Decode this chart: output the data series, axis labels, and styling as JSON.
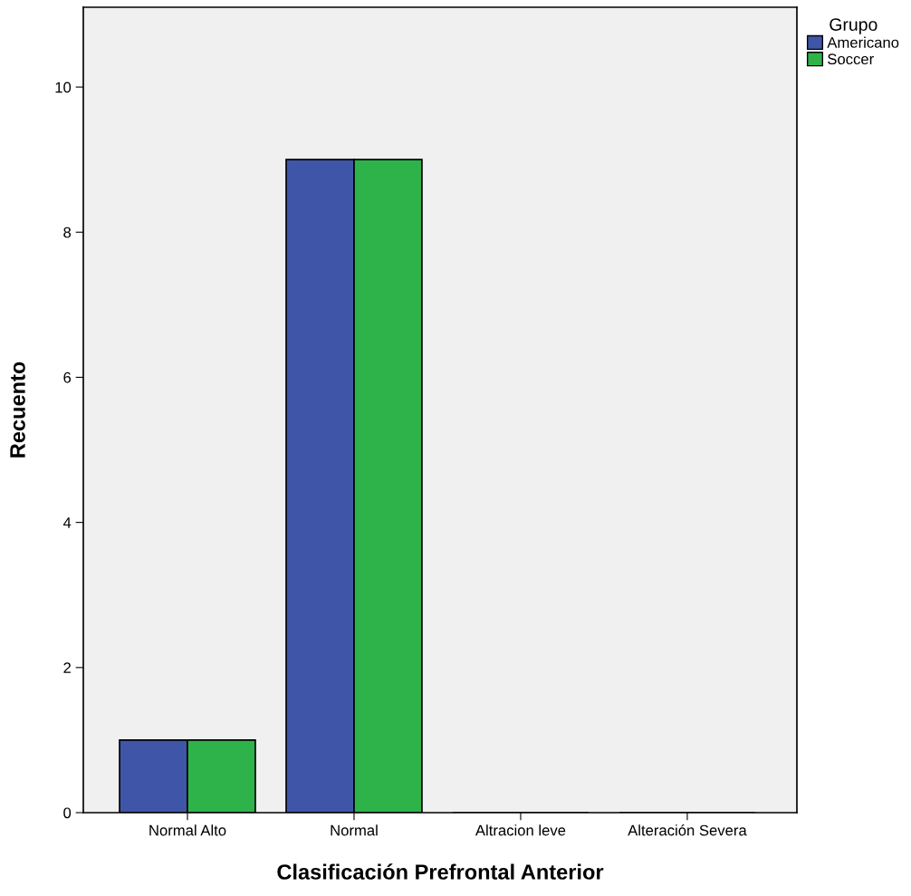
{
  "chart_data": {
    "type": "bar",
    "xlabel": "Clasificación Prefrontal Anterior",
    "ylabel": "Recuento",
    "legend_title": "Grupo",
    "categories": [
      "Normal Alto",
      "Normal",
      "Altracion leve",
      "Alteración Severa"
    ],
    "series": [
      {
        "name": "Americano",
        "color": "#3f56a8",
        "values": [
          1,
          9,
          0,
          0
        ]
      },
      {
        "name": "Soccer",
        "color": "#2eb34a",
        "values": [
          1,
          9,
          0,
          0
        ]
      }
    ],
    "ylim": [
      0,
      11.1
    ],
    "yticks": [
      0,
      2,
      4,
      6,
      8,
      10
    ],
    "grid": false,
    "legend": "top right"
  }
}
